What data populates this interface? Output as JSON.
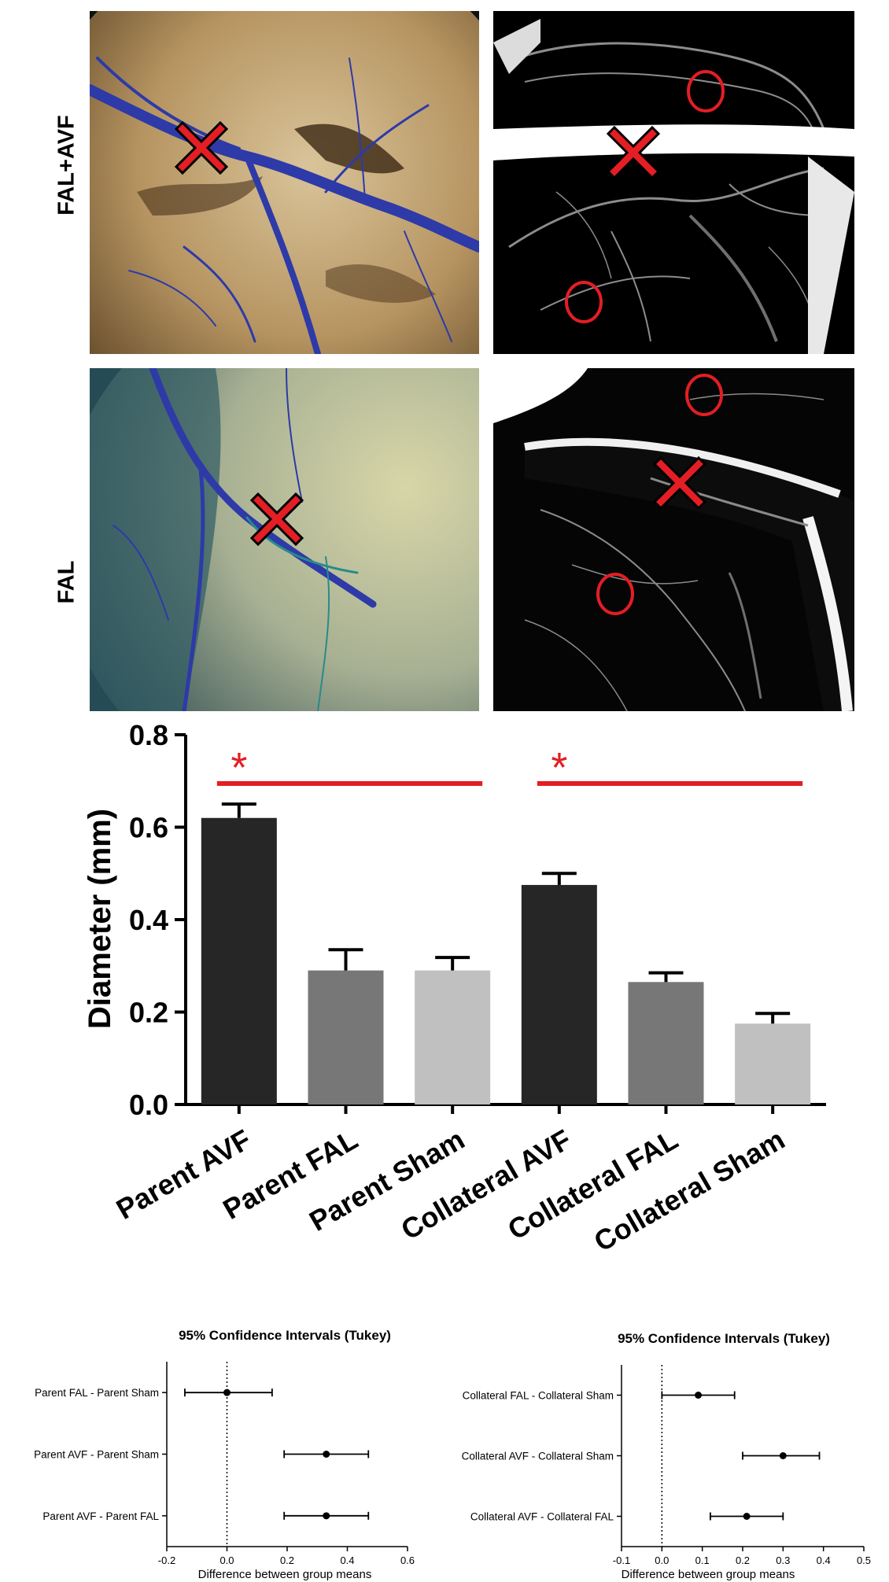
{
  "figure": {
    "row_labels": [
      "FAL+AVF",
      "FAL"
    ]
  },
  "chart_data": [
    {
      "type": "bar",
      "categories": [
        "Parent AVF",
        "Parent FAL",
        "Parent Sham",
        "Collateral AVF",
        "Collateral FAL",
        "Collateral Sham"
      ],
      "values": [
        0.62,
        0.29,
        0.29,
        0.475,
        0.265,
        0.175
      ],
      "errors": [
        0.03,
        0.045,
        0.028,
        0.025,
        0.02,
        0.022
      ],
      "bar_colors": [
        "#262626",
        "#777777",
        "#c0c0c0",
        "#262626",
        "#777777",
        "#c0c0c0"
      ],
      "ylabel": "Diameter (mm)",
      "ylim": [
        0.0,
        0.8
      ],
      "yticks": [
        "0.0",
        "0.2",
        "0.4",
        "0.6",
        "0.8"
      ],
      "significance": [
        {
          "label": "*",
          "from": "Parent AVF",
          "to": "Parent Sham"
        },
        {
          "label": "*",
          "from": "Collateral AVF",
          "to": "Collateral Sham"
        }
      ],
      "accent_color": "#e31e24"
    },
    {
      "type": "scatter",
      "title": "95% Confidence Intervals (Tukey)",
      "xlabel": "Difference between group means",
      "xlim": [
        -0.2,
        0.6
      ],
      "xticks": [
        "-0.2",
        "0.0",
        "0.2",
        "0.4",
        "0.6"
      ],
      "comparisons": [
        {
          "label": "Parent FAL - Parent Sham",
          "mean": 0.0,
          "lower": -0.14,
          "upper": 0.15
        },
        {
          "label": "Parent AVF - Parent Sham",
          "mean": 0.33,
          "lower": 0.19,
          "upper": 0.47
        },
        {
          "label": "Parent AVF - Parent FAL",
          "mean": 0.33,
          "lower": 0.19,
          "upper": 0.47
        }
      ]
    },
    {
      "type": "scatter",
      "title": "95% Confidence Intervals (Tukey)",
      "xlabel": "Difference between group means",
      "xlim": [
        -0.1,
        0.5
      ],
      "xticks": [
        "-0.1",
        "0.0",
        "0.1",
        "0.2",
        "0.3",
        "0.4",
        "0.5"
      ],
      "comparisons": [
        {
          "label": "Collateral FAL - Collateral Sham",
          "mean": 0.09,
          "lower": 0.0,
          "upper": 0.18
        },
        {
          "label": "Collateral AVF - Collateral Sham",
          "mean": 0.3,
          "lower": 0.2,
          "upper": 0.39
        },
        {
          "label": "Collateral AVF - Collateral FAL",
          "mean": 0.21,
          "lower": 0.12,
          "upper": 0.3
        }
      ]
    }
  ]
}
